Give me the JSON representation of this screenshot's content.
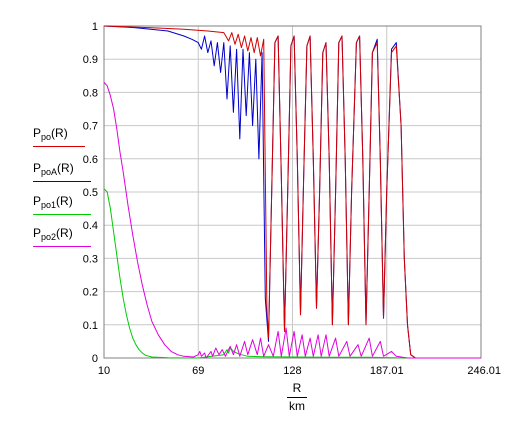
{
  "chart_data": {
    "type": "line",
    "xlim": [
      10,
      246.01
    ],
    "ylim": [
      0,
      1
    ],
    "x_ticks": [
      "10",
      "69",
      "128",
      "187.01",
      "246.01"
    ],
    "x_tick_values": [
      10,
      69,
      128,
      187.01,
      246.01
    ],
    "y_ticks": [
      "0",
      "0.1",
      "0.2",
      "0.3",
      "0.4",
      "0.5",
      "0.6",
      "0.7",
      "0.8",
      "0.9",
      "1"
    ],
    "grid": true,
    "legend_position": "left",
    "xlabel_num": "R",
    "xlabel_den": "km",
    "series": [
      {
        "base": "P",
        "sub": "po",
        "arg": "(R)",
        "color": "#d40000",
        "points": [
          [
            10,
            1.0
          ],
          [
            40,
            0.995
          ],
          [
            60,
            0.99
          ],
          [
            75,
            0.985
          ],
          [
            85,
            0.98
          ],
          [
            88,
            0.955
          ],
          [
            90,
            0.98
          ],
          [
            92,
            0.945
          ],
          [
            94,
            0.975
          ],
          [
            96,
            0.935
          ],
          [
            98,
            0.97
          ],
          [
            100,
            0.925
          ],
          [
            102,
            0.965
          ],
          [
            104,
            0.92
          ],
          [
            106,
            0.965
          ],
          [
            108,
            0.91
          ],
          [
            110,
            0.96
          ],
          [
            112,
            0.15
          ],
          [
            113,
            0.06
          ],
          [
            115,
            0.5
          ],
          [
            117,
            0.95
          ],
          [
            119,
            0.97
          ],
          [
            121,
            0.55
          ],
          [
            123,
            0.08
          ],
          [
            125,
            0.5
          ],
          [
            127,
            0.94
          ],
          [
            129,
            0.97
          ],
          [
            131,
            0.6
          ],
          [
            133,
            0.13
          ],
          [
            135,
            0.55
          ],
          [
            137,
            0.94
          ],
          [
            139,
            0.97
          ],
          [
            141,
            0.6
          ],
          [
            143,
            0.15
          ],
          [
            145,
            0.5
          ],
          [
            147,
            0.92
          ],
          [
            149,
            0.95
          ],
          [
            151,
            0.6
          ],
          [
            153,
            0.1
          ],
          [
            155,
            0.5
          ],
          [
            157,
            0.95
          ],
          [
            159,
            0.97
          ],
          [
            161,
            0.6
          ],
          [
            163,
            0.1
          ],
          [
            165,
            0.5
          ],
          [
            168,
            0.95
          ],
          [
            170,
            0.97
          ],
          [
            172,
            0.6
          ],
          [
            174,
            0.1
          ],
          [
            176,
            0.5
          ],
          [
            178,
            0.92
          ],
          [
            181,
            0.95
          ],
          [
            183,
            0.6
          ],
          [
            185,
            0.12
          ],
          [
            187,
            0.5
          ],
          [
            190,
            0.92
          ],
          [
            193,
            0.94
          ],
          [
            196,
            0.7
          ],
          [
            198,
            0.3
          ],
          [
            200,
            0.1
          ],
          [
            202,
            0.01
          ],
          [
            205,
            0.0
          ],
          [
            246.01,
            0.0
          ]
        ]
      },
      {
        "base": "P",
        "sub": "poA",
        "arg": "(R)",
        "color": "#0000cc",
        "points": [
          [
            10,
            1.0
          ],
          [
            30,
            0.995
          ],
          [
            50,
            0.985
          ],
          [
            60,
            0.97
          ],
          [
            65,
            0.96
          ],
          [
            69,
            0.95
          ],
          [
            71,
            0.93
          ],
          [
            73,
            0.97
          ],
          [
            75,
            0.92
          ],
          [
            77,
            0.955
          ],
          [
            79,
            0.88
          ],
          [
            81,
            0.95
          ],
          [
            83,
            0.86
          ],
          [
            85,
            0.95
          ],
          [
            87,
            0.78
          ],
          [
            89,
            0.94
          ],
          [
            91,
            0.74
          ],
          [
            93,
            0.93
          ],
          [
            95,
            0.66
          ],
          [
            97,
            0.93
          ],
          [
            99,
            0.73
          ],
          [
            101,
            0.92
          ],
          [
            103,
            0.7
          ],
          [
            105,
            0.9
          ],
          [
            107,
            0.6
          ],
          [
            109,
            0.92
          ],
          [
            111,
            0.18
          ],
          [
            113,
            0.05
          ],
          [
            115,
            0.5
          ],
          [
            117,
            0.95
          ],
          [
            119,
            0.97
          ],
          [
            121,
            0.55
          ],
          [
            123,
            0.08
          ],
          [
            125,
            0.5
          ],
          [
            127,
            0.94
          ],
          [
            129,
            0.97
          ],
          [
            131,
            0.6
          ],
          [
            133,
            0.13
          ],
          [
            135,
            0.55
          ],
          [
            137,
            0.94
          ],
          [
            139,
            0.97
          ],
          [
            141,
            0.6
          ],
          [
            143,
            0.15
          ],
          [
            145,
            0.5
          ],
          [
            147,
            0.92
          ],
          [
            149,
            0.95
          ],
          [
            151,
            0.6
          ],
          [
            153,
            0.1
          ],
          [
            155,
            0.5
          ],
          [
            157,
            0.95
          ],
          [
            159,
            0.97
          ],
          [
            161,
            0.6
          ],
          [
            163,
            0.1
          ],
          [
            165,
            0.5
          ],
          [
            168,
            0.95
          ],
          [
            170,
            0.97
          ],
          [
            172,
            0.6
          ],
          [
            174,
            0.1
          ],
          [
            176,
            0.5
          ],
          [
            178,
            0.92
          ],
          [
            181,
            0.96
          ],
          [
            183,
            0.6
          ],
          [
            185,
            0.12
          ],
          [
            187,
            0.5
          ],
          [
            190,
            0.93
          ],
          [
            193,
            0.95
          ],
          [
            196,
            0.7
          ],
          [
            198,
            0.3
          ],
          [
            200,
            0.1
          ],
          [
            202,
            0.01
          ],
          [
            205,
            0.0
          ],
          [
            246.01,
            0.0
          ]
        ]
      },
      {
        "base": "P",
        "sub": "po1",
        "arg": "(R)",
        "color": "#00cc00",
        "points": [
          [
            10,
            0.51
          ],
          [
            12,
            0.5
          ],
          [
            14,
            0.45
          ],
          [
            16,
            0.38
          ],
          [
            18,
            0.31
          ],
          [
            20,
            0.24
          ],
          [
            22,
            0.18
          ],
          [
            24,
            0.13
          ],
          [
            26,
            0.09
          ],
          [
            28,
            0.06
          ],
          [
            30,
            0.04
          ],
          [
            32,
            0.025
          ],
          [
            34,
            0.015
          ],
          [
            36,
            0.008
          ],
          [
            40,
            0.003
          ],
          [
            50,
            0.001
          ],
          [
            69,
            0.0
          ],
          [
            85,
            0.01
          ],
          [
            87,
            0.025
          ],
          [
            88,
            0.015
          ],
          [
            89,
            0.03
          ],
          [
            91,
            0.02
          ],
          [
            93,
            0.015
          ],
          [
            96,
            0.01
          ],
          [
            100,
            0.005
          ],
          [
            110,
            0.004
          ],
          [
            130,
            0.003
          ],
          [
            150,
            0.002
          ],
          [
            175,
            0.002
          ],
          [
            200,
            0.0
          ],
          [
            246.01,
            0.0
          ]
        ]
      },
      {
        "base": "P",
        "sub": "po2",
        "arg": "(R)",
        "color": "#e000e0",
        "points": [
          [
            10,
            0.83
          ],
          [
            12,
            0.82
          ],
          [
            14,
            0.79
          ],
          [
            16,
            0.75
          ],
          [
            18,
            0.69
          ],
          [
            20,
            0.62
          ],
          [
            22,
            0.56
          ],
          [
            25,
            0.46
          ],
          [
            28,
            0.37
          ],
          [
            31,
            0.29
          ],
          [
            34,
            0.22
          ],
          [
            37,
            0.16
          ],
          [
            40,
            0.11
          ],
          [
            44,
            0.07
          ],
          [
            48,
            0.04
          ],
          [
            52,
            0.02
          ],
          [
            56,
            0.01
          ],
          [
            60,
            0.005
          ],
          [
            66,
            0.003
          ],
          [
            69,
            0.01
          ],
          [
            70,
            0.02
          ],
          [
            71,
            0.005
          ],
          [
            73,
            0.015
          ],
          [
            74,
            0.0
          ],
          [
            77,
            0.02
          ],
          [
            78,
            0.005
          ],
          [
            80,
            0.03
          ],
          [
            82,
            0.01
          ],
          [
            84,
            0.025
          ],
          [
            86,
            0.005
          ],
          [
            89,
            0.035
          ],
          [
            91,
            0.01
          ],
          [
            93,
            0.04
          ],
          [
            95,
            0.005
          ],
          [
            98,
            0.05
          ],
          [
            100,
            0.01
          ],
          [
            103,
            0.055
          ],
          [
            106,
            0.01
          ],
          [
            108,
            0.06
          ],
          [
            110,
            0.005
          ],
          [
            113,
            0.04
          ],
          [
            116,
            0.005
          ],
          [
            119,
            0.08
          ],
          [
            121,
            0.005
          ],
          [
            124,
            0.09
          ],
          [
            126,
            0.005
          ],
          [
            129,
            0.08
          ],
          [
            131,
            0.005
          ],
          [
            134,
            0.07
          ],
          [
            136,
            0.005
          ],
          [
            139,
            0.06
          ],
          [
            141,
            0.005
          ],
          [
            144,
            0.07
          ],
          [
            146,
            0.005
          ],
          [
            149,
            0.07
          ],
          [
            151,
            0.005
          ],
          [
            155,
            0.06
          ],
          [
            157,
            0.005
          ],
          [
            162,
            0.05
          ],
          [
            164,
            0.005
          ],
          [
            169,
            0.04
          ],
          [
            171,
            0.005
          ],
          [
            176,
            0.06
          ],
          [
            178,
            0.005
          ],
          [
            183,
            0.05
          ],
          [
            185,
            0.005
          ],
          [
            190,
            0.02
          ],
          [
            193,
            0.005
          ],
          [
            200,
            0.0
          ],
          [
            246.01,
            0.0
          ]
        ]
      }
    ]
  }
}
